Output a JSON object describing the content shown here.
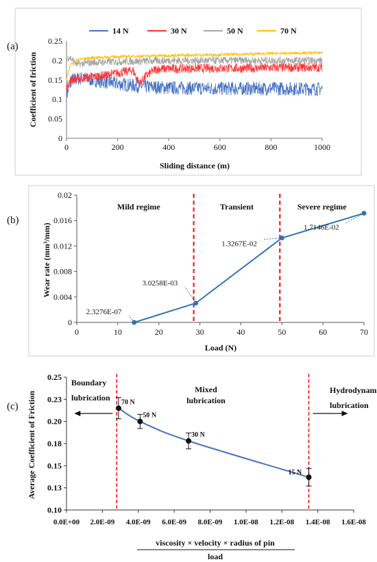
{
  "chart_data": [
    {
      "type": "line",
      "panel_label": "(a)",
      "xlabel": "Sliding distance (m)",
      "ylabel": "Coefficient of friction",
      "xlim": [
        0,
        1000
      ],
      "ylim": [
        0,
        0.25
      ],
      "x_ticks": [
        "0",
        "200",
        "400",
        "600",
        "800",
        "1000"
      ],
      "y_ticks": [
        "0",
        "0.05",
        "0.1",
        "0.15",
        "0.2",
        "0.25"
      ],
      "grid": false,
      "legend_position": "top",
      "series": [
        {
          "name": "14 N",
          "color": "#4472C4",
          "start": 0.11,
          "peak_x": 20,
          "peak": 0.16,
          "profile": [
            [
              0,
              0.11
            ],
            [
              20,
              0.15
            ],
            [
              60,
              0.155
            ],
            [
              120,
              0.148
            ],
            [
              200,
              0.14
            ],
            [
              300,
              0.133
            ],
            [
              400,
              0.13
            ],
            [
              600,
              0.128
            ],
            [
              800,
              0.128
            ],
            [
              1000,
              0.127
            ]
          ],
          "noise": 0.018
        },
        {
          "name": "30 N",
          "color": "#FF3333",
          "start": 0.13,
          "profile": [
            [
              0,
              0.13
            ],
            [
              15,
              0.15
            ],
            [
              60,
              0.155
            ],
            [
              150,
              0.162
            ],
            [
              200,
              0.168
            ],
            [
              260,
              0.175
            ],
            [
              285,
              0.14
            ],
            [
              310,
              0.16
            ],
            [
              350,
              0.178
            ],
            [
              500,
              0.18
            ],
            [
              700,
              0.18
            ],
            [
              850,
              0.182
            ],
            [
              1000,
              0.182
            ]
          ],
          "noise": 0.012
        },
        {
          "name": "50 N",
          "color": "#A5A5A5",
          "start": 0.2,
          "profile": [
            [
              0,
              0.2
            ],
            [
              10,
              0.21
            ],
            [
              40,
              0.19
            ],
            [
              100,
              0.195
            ],
            [
              200,
              0.197
            ],
            [
              400,
              0.2
            ],
            [
              600,
              0.2
            ],
            [
              800,
              0.2
            ],
            [
              1000,
              0.2
            ]
          ],
          "noise": 0.01
        },
        {
          "name": "70 N",
          "color": "#FFC000",
          "start": 0.15,
          "profile": [
            [
              0,
              0.15
            ],
            [
              15,
              0.19
            ],
            [
              40,
              0.202
            ],
            [
              100,
              0.207
            ],
            [
              200,
              0.21
            ],
            [
              400,
              0.213
            ],
            [
              600,
              0.215
            ],
            [
              800,
              0.218
            ],
            [
              1000,
              0.22
            ]
          ],
          "noise": 0.004
        }
      ]
    },
    {
      "type": "line",
      "panel_label": "(b)",
      "xlabel": "Load (N)",
      "ylabel": "Wear rate (mm³/mm)",
      "xlim": [
        0,
        70
      ],
      "ylim": [
        0,
        0.02
      ],
      "x_ticks": [
        "0",
        "10",
        "20",
        "30",
        "40",
        "50",
        "60",
        "70"
      ],
      "y_ticks": [
        "0",
        "0.004",
        "0.008",
        "0.012",
        "0.016",
        "0.02"
      ],
      "series": [
        {
          "color": "#2E75B6",
          "x": [
            14,
            29,
            50,
            70
          ],
          "y": [
            2.3276e-07,
            0.0030258,
            0.013267,
            0.017146
          ],
          "labels": [
            "2.3276E-07",
            "3.0258E-03",
            "1.3267E-02",
            "1.7146E-02"
          ]
        }
      ],
      "regime_lines_x": [
        28.5,
        49.5
      ],
      "regimes": [
        "Mild regime",
        "Transient",
        "Severe regime"
      ]
    },
    {
      "type": "scatter",
      "panel_label": "(c)",
      "ylabel": "Average Coefficient of Friction",
      "xlabel_numerator": "viscosity × velocity × radius of pin",
      "xlabel_denominator": "load",
      "xlim": [
        0,
        1.6e-08
      ],
      "ylim": [
        0.1,
        0.25
      ],
      "x_ticks": [
        "0.0E+00",
        "2.0E-09",
        "4.0E-09",
        "6.0E-09",
        "8.0E-09",
        "1.0E-08",
        "1.2E-08",
        "1.4E-08",
        "1.6E-08"
      ],
      "y_ticks": [
        "0.10",
        "0.13",
        "0.15",
        "0.18",
        "0.20",
        "0.23",
        "0.25"
      ],
      "points": [
        {
          "label": "70 N",
          "x": 2.9e-09,
          "y": 0.215,
          "err": 0.012
        },
        {
          "label": "50 N",
          "x": 4.1e-09,
          "y": 0.2,
          "err": 0.008
        },
        {
          "label": "30 N",
          "x": 6.8e-09,
          "y": 0.178,
          "err": 0.009
        },
        {
          "label": "15 N",
          "x": 1.35e-08,
          "y": 0.137,
          "err": 0.01
        }
      ],
      "line_color": "#4472C4",
      "boundary_lines_x": [
        2.8e-09,
        1.35e-08
      ],
      "regions": [
        {
          "line1": "Boundary",
          "line2": "lubrication"
        },
        {
          "line1": "Mixed",
          "line2": "lubrication"
        },
        {
          "line1": "Hydrodynamic",
          "line2": "lubrication"
        }
      ]
    }
  ]
}
